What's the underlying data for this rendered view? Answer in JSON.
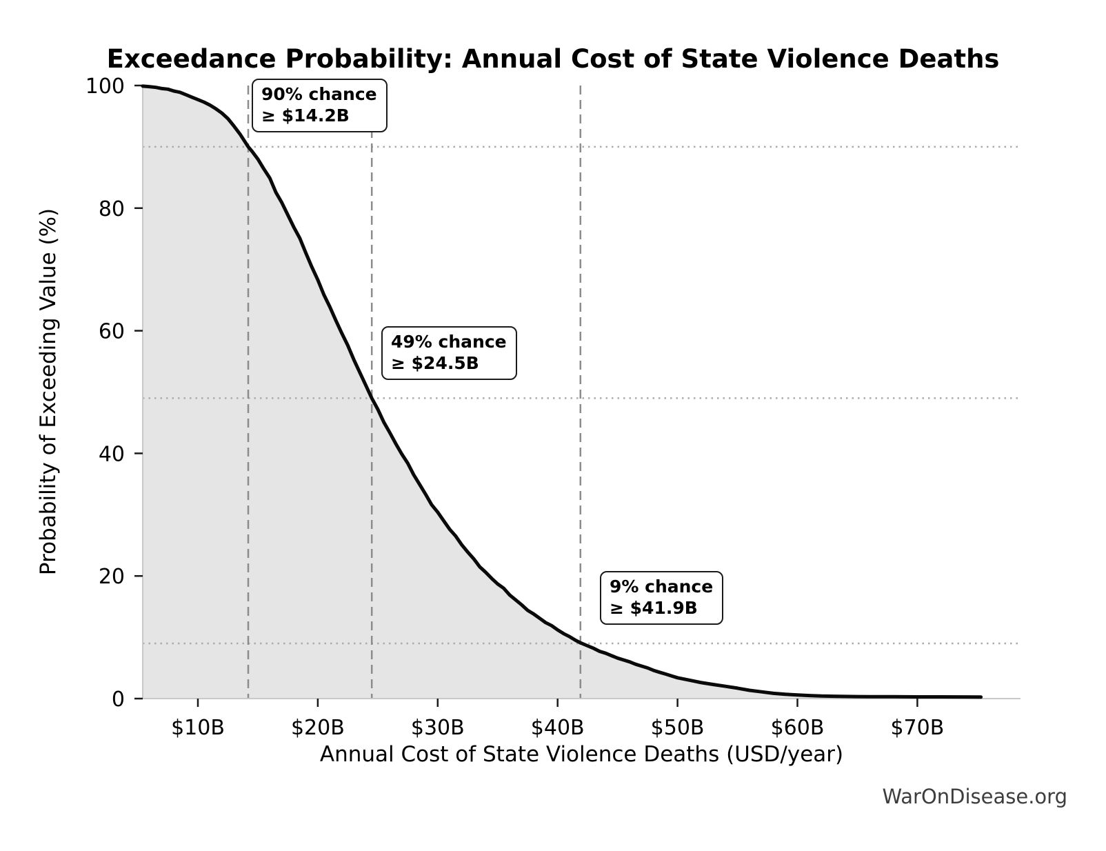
{
  "chart_data": {
    "type": "line",
    "title": "Exceedance Probability: Annual Cost of State Violence Deaths",
    "xlabel": "Annual Cost of State Violence Deaths (USD/year)",
    "ylabel": "Probability of Exceeding Value (%)",
    "watermark": "WarOnDisease.org",
    "x_unit": "billions of USD per year",
    "xlim": [
      5.4,
      78.6
    ],
    "ylim": [
      0,
      100
    ],
    "grid": "reference lines only",
    "legend": "none",
    "x_ticks": [
      {
        "value": 10,
        "label": "$10B"
      },
      {
        "value": 20,
        "label": "$20B"
      },
      {
        "value": 30,
        "label": "$30B"
      },
      {
        "value": 40,
        "label": "$40B"
      },
      {
        "value": 50,
        "label": "$50B"
      },
      {
        "value": 60,
        "label": "$60B"
      },
      {
        "value": 70,
        "label": "$70B"
      }
    ],
    "y_ticks": [
      {
        "value": 0,
        "label": "0"
      },
      {
        "value": 20,
        "label": "20"
      },
      {
        "value": 40,
        "label": "40"
      },
      {
        "value": 60,
        "label": "60"
      },
      {
        "value": 80,
        "label": "80"
      },
      {
        "value": 100,
        "label": "100"
      }
    ],
    "series": [
      {
        "name": "exceedance-probability-curve",
        "fill_under_curve": true,
        "points": [
          [
            5.4,
            99.9
          ],
          [
            6,
            99.8
          ],
          [
            6.5,
            99.7
          ],
          [
            7,
            99.5
          ],
          [
            7.5,
            99.4
          ],
          [
            8,
            99.1
          ],
          [
            8.5,
            98.9
          ],
          [
            9,
            98.5
          ],
          [
            9.5,
            98.1
          ],
          [
            10,
            97.7
          ],
          [
            10.5,
            97.3
          ],
          [
            11,
            96.8
          ],
          [
            11.5,
            96.2
          ],
          [
            12,
            95.5
          ],
          [
            12.5,
            94.6
          ],
          [
            13,
            93.4
          ],
          [
            13.5,
            92.1
          ],
          [
            14,
            90.6
          ],
          [
            14.2,
            90
          ],
          [
            14.5,
            89.3
          ],
          [
            15,
            88
          ],
          [
            15.5,
            86.4
          ],
          [
            16,
            84.9
          ],
          [
            16.5,
            82.6
          ],
          [
            17,
            80.9
          ],
          [
            17.5,
            78.9
          ],
          [
            18,
            76.9
          ],
          [
            18.5,
            75.1
          ],
          [
            19,
            72.7
          ],
          [
            19.5,
            70.4
          ],
          [
            20,
            68.3
          ],
          [
            20.5,
            65.9
          ],
          [
            21,
            63.9
          ],
          [
            21.5,
            61.7
          ],
          [
            22,
            59.6
          ],
          [
            22.5,
            57.6
          ],
          [
            23,
            55.3
          ],
          [
            23.5,
            53.2
          ],
          [
            24,
            51.1
          ],
          [
            24.5,
            49
          ],
          [
            25,
            47.2
          ],
          [
            25.5,
            45.1
          ],
          [
            26,
            43.4
          ],
          [
            26.5,
            41.6
          ],
          [
            27,
            39.9
          ],
          [
            27.5,
            38.4
          ],
          [
            28,
            36.5
          ],
          [
            28.5,
            34.9
          ],
          [
            29,
            33.3
          ],
          [
            29.5,
            31.6
          ],
          [
            30,
            30.4
          ],
          [
            30.5,
            29
          ],
          [
            31,
            27.6
          ],
          [
            31.5,
            26.5
          ],
          [
            32,
            25.1
          ],
          [
            32.5,
            23.9
          ],
          [
            33,
            22.8
          ],
          [
            33.5,
            21.5
          ],
          [
            34,
            20.6
          ],
          [
            34.5,
            19.6
          ],
          [
            35,
            18.7
          ],
          [
            35.5,
            18
          ],
          [
            36,
            16.9
          ],
          [
            36.5,
            16.1
          ],
          [
            37,
            15.3
          ],
          [
            37.5,
            14.4
          ],
          [
            38,
            13.8
          ],
          [
            38.5,
            13.1
          ],
          [
            39,
            12.4
          ],
          [
            39.5,
            11.9
          ],
          [
            40,
            11.2
          ],
          [
            40.5,
            10.6
          ],
          [
            41,
            10.1
          ],
          [
            41.5,
            9.5
          ],
          [
            41.9,
            9.1
          ],
          [
            42.5,
            8.6
          ],
          [
            43,
            8.2
          ],
          [
            43.5,
            7.7
          ],
          [
            44,
            7.4
          ],
          [
            44.5,
            7
          ],
          [
            45,
            6.6
          ],
          [
            45.5,
            6.3
          ],
          [
            46,
            6
          ],
          [
            46.5,
            5.6
          ],
          [
            47,
            5.3
          ],
          [
            47.5,
            5
          ],
          [
            48,
            4.6
          ],
          [
            48.5,
            4.3
          ],
          [
            49,
            4
          ],
          [
            49.5,
            3.7
          ],
          [
            50,
            3.4
          ],
          [
            51,
            3
          ],
          [
            52,
            2.6
          ],
          [
            53,
            2.3
          ],
          [
            54,
            2
          ],
          [
            55,
            1.7
          ],
          [
            56,
            1.35
          ],
          [
            57,
            1.1
          ],
          [
            58,
            0.85
          ],
          [
            59,
            0.7
          ],
          [
            60,
            0.6
          ],
          [
            61,
            0.5
          ],
          [
            62,
            0.42
          ],
          [
            63,
            0.38
          ],
          [
            64,
            0.35
          ],
          [
            65,
            0.33
          ],
          [
            66,
            0.3
          ],
          [
            68,
            0.3
          ],
          [
            70,
            0.28
          ],
          [
            72,
            0.28
          ],
          [
            74,
            0.27
          ],
          [
            75.3,
            0.25
          ]
        ]
      }
    ],
    "annotations": [
      {
        "line1": "90% chance",
        "line2": "≥ $14.2B",
        "x": 14.2,
        "probability_pct": 90
      },
      {
        "line1": "49% chance",
        "line2": "≥ $24.5B",
        "x": 24.5,
        "probability_pct": 49
      },
      {
        "line1": "9% chance",
        "line2": "≥ $41.9B",
        "x": 41.9,
        "probability_pct": 9
      }
    ],
    "reference_lines": {
      "vertical_dashed_x": [
        14.2,
        24.5,
        41.9
      ],
      "horizontal_dotted_y": [
        90,
        49,
        9
      ]
    },
    "colors": {
      "curve": "#0a0a0a",
      "fill": "#e5e5e6",
      "dashed_line": "#8c8c8c",
      "dotted_line": "#ababab",
      "spine": "#c9c9c9",
      "tick": "#1a1a1a",
      "text": "#000000",
      "watermark": "#3d3d3d",
      "background": "#ffffff"
    }
  }
}
